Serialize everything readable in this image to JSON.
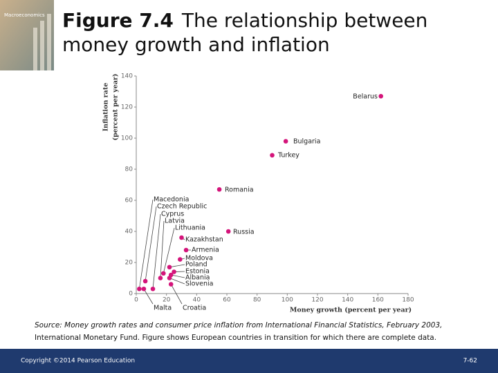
{
  "cover": {
    "title": "Macroeconomics"
  },
  "footer": {
    "copyright": "Copyright ©2014 Pearson Education",
    "page": "7-62"
  },
  "chart_data": {
    "type": "scatter",
    "figure": "Figure 7.4",
    "title_line1": "The relationship between",
    "title_line2": "money growth and inflation",
    "x_label": "Money growth (percent per year)",
    "y_label_line1": "Inflation rate",
    "y_label_line2": "(percent per year)",
    "source_line1": "Source: Money growth rates and consumer price inflation from International Financial Statistics, February 2003,",
    "source_line2": "International Monetary Fund. Figure shows European countries in transition for which there are complete data.",
    "xlim": [
      0,
      180
    ],
    "xticks": [
      0,
      20,
      40,
      60,
      80,
      100,
      120,
      140,
      160,
      180
    ],
    "ylim": [
      0,
      140
    ],
    "yticks": [
      0,
      20,
      40,
      60,
      80,
      100,
      120,
      140
    ],
    "series": [
      {
        "color": "#d4147a",
        "labels": [
          "Belarus",
          "Bulgaria",
          "Turkey",
          "Romania",
          "Russia",
          "Macedonia",
          "Czech Republic",
          "Cyprus",
          "Latvia",
          "Lithuania",
          "Kazakhstan",
          "Armenia",
          "Moldova",
          "Poland",
          "Estonia",
          "Albania",
          "Slovenia",
          "Malta",
          "Croatia"
        ],
        "x": [
          162,
          99,
          90,
          55,
          61,
          2,
          6,
          11,
          16,
          18,
          30,
          33,
          29,
          22,
          25,
          23,
          22,
          5,
          23
        ],
        "values": [
          127,
          98,
          89,
          67,
          40,
          3,
          8,
          3,
          10,
          13,
          36,
          28,
          22,
          17,
          14,
          12,
          10,
          3,
          6
        ]
      }
    ]
  }
}
